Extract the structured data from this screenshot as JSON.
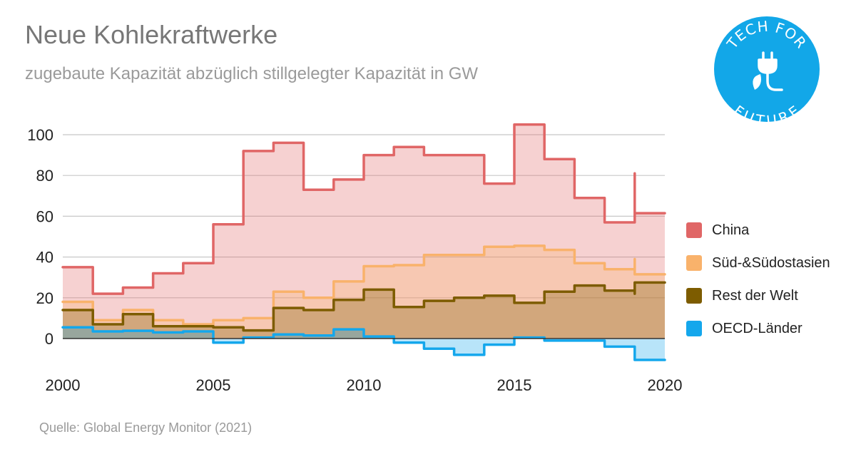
{
  "title": "Neue Kohlekraftwerke",
  "subtitle": "zugebaute Kapazität abzüglich stillgelegter Kapazität in GW",
  "source": "Quelle: Global Energy Monitor (2021)",
  "logo": {
    "text_top": "TECH FOR",
    "text_bottom": "FUTURE",
    "color": "#12a7e8",
    "icon": "plug-leaf-icon"
  },
  "colors": {
    "china": "#e06666",
    "sued": "#f9b26b",
    "rest": "#7d5c00",
    "oecd": "#14a7ec"
  },
  "legend": [
    {
      "label": "China",
      "key": "china"
    },
    {
      "label": "Süd-&Südostasien",
      "key": "sued"
    },
    {
      "label": "Rest der Welt",
      "key": "rest"
    },
    {
      "label": "OECD-Länder",
      "key": "oecd"
    }
  ],
  "chart_data": {
    "type": "area",
    "step": true,
    "x": [
      2000,
      2001,
      2002,
      2003,
      2004,
      2005,
      2006,
      2007,
      2008,
      2009,
      2010,
      2011,
      2012,
      2013,
      2014,
      2015,
      2016,
      2017,
      2018,
      2019
    ],
    "series": [
      {
        "name": "OECD-Länder",
        "key": "oecd",
        "values": [
          5.5,
          3.5,
          3.8,
          3,
          3.5,
          -2,
          0.5,
          2,
          1.5,
          4.5,
          1,
          -2,
          -5,
          -8,
          -3,
          0.5,
          -1,
          -1,
          -4,
          -4.5
        ]
      },
      {
        "name": "Rest der Welt",
        "key": "rest",
        "values": [
          14,
          7,
          12,
          6,
          6,
          5.5,
          4,
          15,
          14,
          19,
          24,
          15.5,
          18.5,
          20,
          21,
          17.5,
          23,
          26,
          23.5,
          22
        ]
      },
      {
        "name": "Süd-&Südostasien",
        "key": "sued",
        "values": [
          18,
          9,
          14,
          9,
          7,
          9,
          10,
          23,
          20,
          28,
          35.5,
          36,
          41,
          41,
          45,
          45.5,
          43.5,
          37,
          34,
          39
        ]
      },
      {
        "name": "China",
        "key": "china",
        "values": [
          35,
          22,
          25,
          32,
          37,
          56,
          92,
          96,
          73,
          78,
          90,
          94,
          90,
          90,
          76,
          105,
          88,
          69,
          57,
          81
        ]
      }
    ],
    "last_point": {
      "x": 2019,
      "oecd": -10.5,
      "rest": 27.5,
      "sued": 31.5,
      "china": 61.5
    },
    "x_ticks": [
      "2000",
      "2005",
      "2010",
      "2015",
      "2020"
    ],
    "y_ticks": [
      "0",
      "20",
      "40",
      "60",
      "80",
      "100"
    ],
    "xlim": [
      2000,
      2020
    ],
    "ylim": [
      -15,
      110
    ],
    "grid": true,
    "legend_position": "right"
  }
}
